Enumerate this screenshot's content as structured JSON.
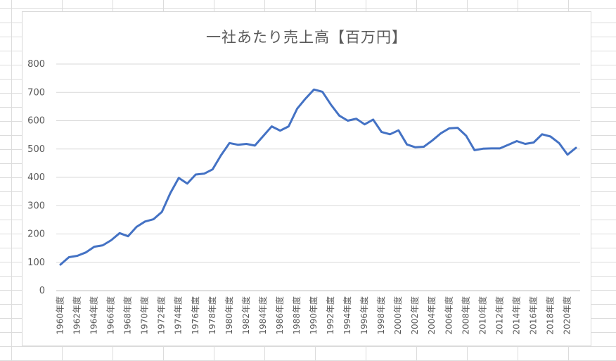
{
  "chart_data": {
    "type": "line",
    "title": "一社あたり売上高【百万円】",
    "xlabel": "",
    "ylabel": "",
    "ylim": [
      0,
      800
    ],
    "yticks": [
      "0",
      "100",
      "200",
      "300",
      "400",
      "500",
      "600",
      "700",
      "800"
    ],
    "grid": true,
    "legend": "none",
    "line_color": "#4472c4",
    "categories": [
      "1960年度",
      "1961年度",
      "1962年度",
      "1963年度",
      "1964年度",
      "1965年度",
      "1966年度",
      "1967年度",
      "1968年度",
      "1969年度",
      "1970年度",
      "1971年度",
      "1972年度",
      "1973年度",
      "1974年度",
      "1975年度",
      "1976年度",
      "1977年度",
      "1978年度",
      "1979年度",
      "1980年度",
      "1981年度",
      "1982年度",
      "1983年度",
      "1984年度",
      "1985年度",
      "1986年度",
      "1987年度",
      "1988年度",
      "1989年度",
      "1990年度",
      "1991年度",
      "1992年度",
      "1993年度",
      "1994年度",
      "1995年度",
      "1996年度",
      "1997年度",
      "1998年度",
      "1999年度",
      "2000年度",
      "2001年度",
      "2002年度",
      "2003年度",
      "2004年度",
      "2005年度",
      "2006年度",
      "2007年度",
      "2008年度",
      "2009年度",
      "2010年度",
      "2011年度",
      "2012年度",
      "2013年度",
      "2014年度",
      "2015年度",
      "2016年度",
      "2017年度",
      "2018年度",
      "2019年度",
      "2020年度",
      "2021年度"
    ],
    "xtick_labels": [
      "1960年度",
      "1962年度",
      "1964年度",
      "1966年度",
      "1968年度",
      "1970年度",
      "1972年度",
      "1974年度",
      "1976年度",
      "1978年度",
      "1980年度",
      "1982年度",
      "1984年度",
      "1986年度",
      "1988年度",
      "1990年度",
      "1992年度",
      "1994年度",
      "1996年度",
      "1998年度",
      "2000年度",
      "2002年度",
      "2004年度",
      "2006年度",
      "2008年度",
      "2010年度",
      "2012年度",
      "2014年度",
      "2016年度",
      "2018年度",
      "2020年度"
    ],
    "values": [
      92,
      118,
      123,
      135,
      155,
      160,
      178,
      203,
      192,
      225,
      244,
      252,
      278,
      344,
      398,
      378,
      410,
      413,
      428,
      478,
      521,
      515,
      518,
      512,
      546,
      580,
      565,
      580,
      642,
      678,
      710,
      702,
      657,
      618,
      600,
      607,
      587,
      604,
      560,
      552,
      566,
      516,
      506,
      508,
      530,
      555,
      573,
      575,
      547,
      496,
      501,
      502,
      502,
      515,
      528,
      518,
      523,
      552,
      544,
      521,
      480,
      504
    ]
  }
}
